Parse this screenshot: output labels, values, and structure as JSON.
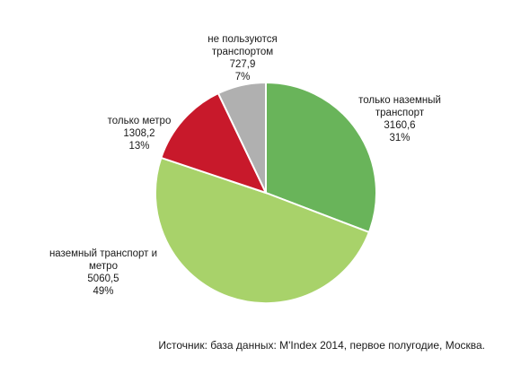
{
  "chart_data": {
    "type": "pie",
    "title": "",
    "slices": [
      {
        "label_lines": [
          "только наземный",
          "транспорт"
        ],
        "value": "3160,6",
        "percent": "31%",
        "numeric": 3160.6,
        "color": "#69b45a"
      },
      {
        "label_lines": [
          "наземный транспорт и",
          "метро"
        ],
        "value": "5060,5",
        "percent": "49%",
        "numeric": 5060.5,
        "color": "#a8d26a"
      },
      {
        "label_lines": [
          "только метро"
        ],
        "value": "1308,2",
        "percent": "13%",
        "numeric": 1308.2,
        "color": "#c8192b"
      },
      {
        "label_lines": [
          "не пользуются",
          "транспортом"
        ],
        "value": "727,9",
        "percent": "7%",
        "numeric": 727.9,
        "color": "#b0b0b0"
      }
    ],
    "start_angle_deg": 0,
    "direction": "clockwise",
    "legend": "none"
  },
  "source_text": "Источник: база данных: M'Index 2014, первое полугодие, Москва."
}
